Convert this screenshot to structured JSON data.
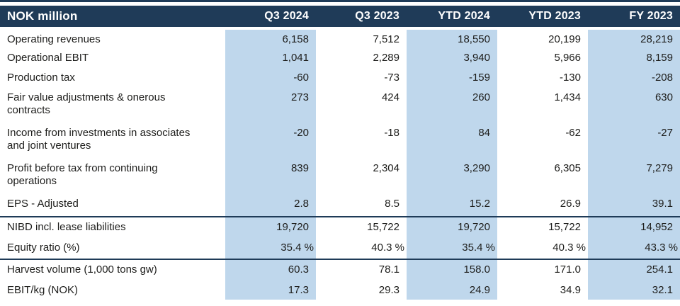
{
  "header": {
    "unit_label": "NOK million",
    "columns": [
      "Q3 2024",
      "Q3 2023",
      "YTD 2024",
      "YTD 2023",
      "FY 2023"
    ]
  },
  "rows": [
    {
      "label": "Operating revenues",
      "values": [
        "6,158",
        "7,512",
        "18,550",
        "20,199",
        "28,219"
      ]
    },
    {
      "label": "Operational EBIT",
      "values": [
        "1,041",
        "2,289",
        "3,940",
        "5,966",
        "8,159"
      ]
    },
    {
      "label": "Production tax",
      "values": [
        "-60",
        "-73",
        "-159",
        "-130",
        "-208"
      ]
    },
    {
      "label": "Fair value adjustments & onerous contracts",
      "values": [
        "273",
        "424",
        "260",
        "1,434",
        "630"
      ]
    },
    {
      "label": "Income from investments in associates and joint ventures",
      "values": [
        "-20",
        "-18",
        "84",
        "-62",
        "-27"
      ]
    },
    {
      "label": "Profit before tax from continuing operations",
      "values": [
        "839",
        "2,304",
        "3,290",
        "6,305",
        "7,279"
      ]
    },
    {
      "label": "EPS - Adjusted",
      "values": [
        "2.8",
        "8.5",
        "15.2",
        "26.9",
        "39.1"
      ]
    },
    {
      "label": "NIBD incl. lease liabilities",
      "values": [
        "19,720",
        "15,722",
        "19,720",
        "15,722",
        "14,952"
      ]
    },
    {
      "label": "Equity ratio (%)",
      "values": [
        "35.4 %",
        "40.3 %",
        "35.4 %",
        "40.3 %",
        "43.3 %"
      ]
    },
    {
      "label": "Harvest volume (1,000 tons gw)",
      "values": [
        "60.3",
        "78.1",
        "158.0",
        "171.0",
        "254.1"
      ]
    },
    {
      "label": "EBIT/kg (NOK)",
      "values": [
        "17.3",
        "29.3",
        "24.9",
        "34.9",
        "32.1"
      ]
    }
  ],
  "colors": {
    "header_bg": "#1F3B58",
    "band_bg": "#BFD7EC",
    "rule": "#1F3B58",
    "header_text": "#FFFFFF",
    "body_text": "#1D1D1B"
  }
}
